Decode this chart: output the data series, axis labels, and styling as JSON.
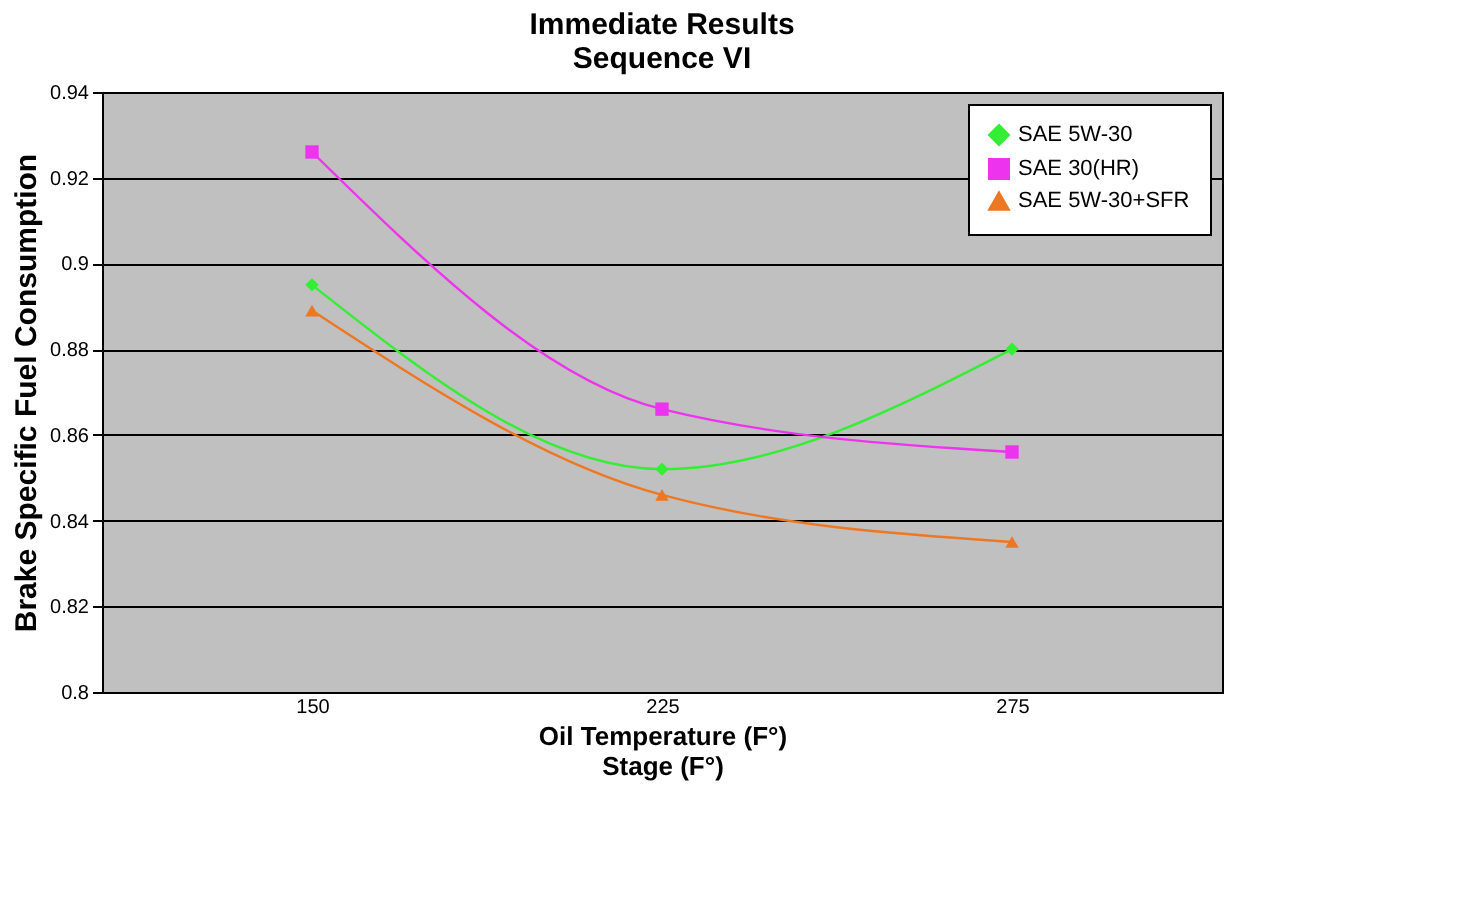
{
  "chart_data": {
    "type": "line",
    "title": [
      "Immediate Results",
      "Sequence VI"
    ],
    "xlabel": [
      "Oil Temperature (F°)",
      "Stage (F°)"
    ],
    "ylabel": "Brake Specific Fuel Consumption",
    "categories": [
      "150",
      "225",
      "275"
    ],
    "series": [
      {
        "name": "SAE 5W-30",
        "color": "#33ee33",
        "marker": "diamond",
        "values": [
          0.895,
          0.852,
          0.88
        ]
      },
      {
        "name": "SAE 30(HR)",
        "color": "#ee33ee",
        "marker": "square",
        "values": [
          0.926,
          0.866,
          0.856
        ]
      },
      {
        "name": "SAE 5W-30+SFR",
        "color": "#ee7722",
        "marker": "triangle",
        "values": [
          0.889,
          0.846,
          0.835
        ]
      }
    ],
    "ylim": [
      0.8,
      0.94
    ],
    "yticks": [
      0.8,
      0.82,
      0.84,
      0.86,
      0.88,
      0.9,
      0.92,
      0.94
    ],
    "grid": "y",
    "legend": "top right",
    "line_style": "solid"
  }
}
